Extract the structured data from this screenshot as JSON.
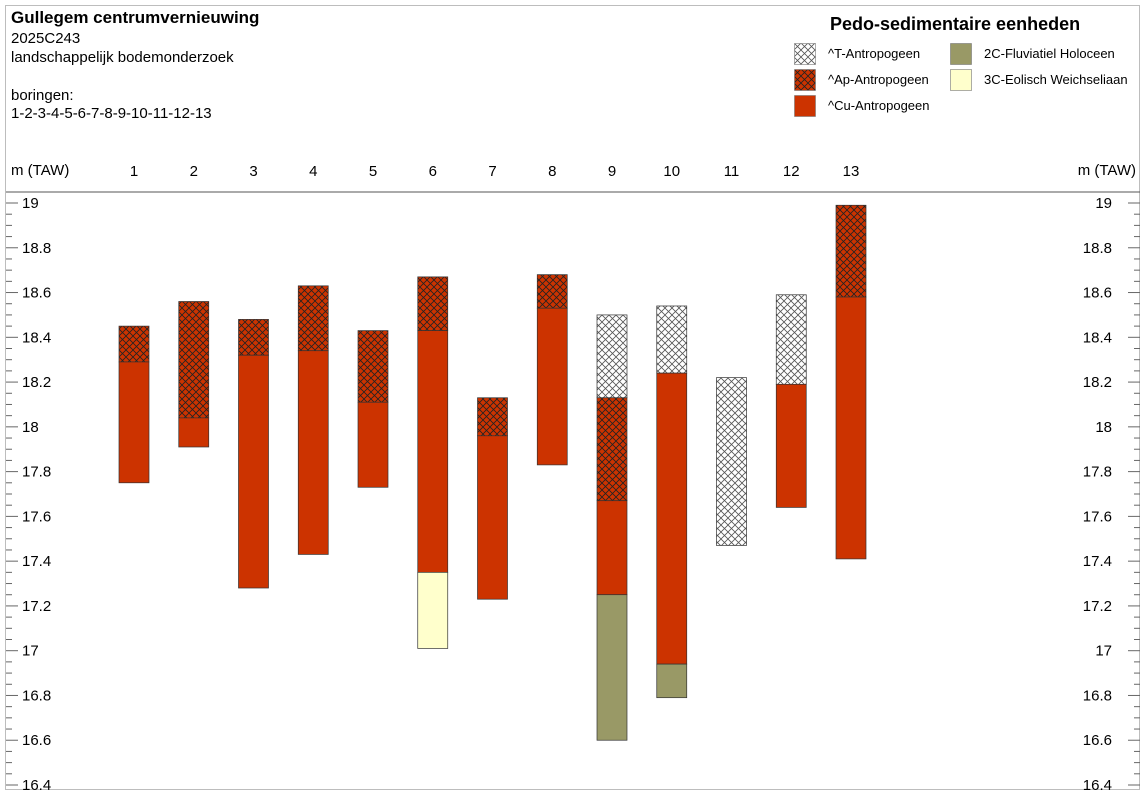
{
  "header": {
    "title": "Gullegem centrumvernieuwing",
    "code": "2025C243",
    "study": "landschappelijk bodemonderzoek",
    "boringen_label": "boringen:",
    "boringen_list": "1-2-3-4-5-6-7-8-9-10-11-12-13"
  },
  "legend": {
    "title": "Pedo-sedimentaire eenheden",
    "items": [
      {
        "key": "T",
        "label": "^T-Antropogeen",
        "fill": "#ffffff",
        "hatch": true,
        "hatch_color": "#555555"
      },
      {
        "key": "Ap",
        "label": "^Ap-Antropogeen",
        "fill": "#cc3300",
        "hatch": true,
        "hatch_color": "#222222"
      },
      {
        "key": "Cu",
        "label": "^Cu-Antropogeen",
        "fill": "#cc3300",
        "hatch": false
      },
      {
        "key": "2C",
        "label": "2C-Fluviatiel Holoceen",
        "fill": "#999966",
        "hatch": false
      },
      {
        "key": "3C",
        "label": "3C-Eolisch Weichseliaan",
        "fill": "#ffffcc",
        "hatch": false
      }
    ]
  },
  "chart_data": {
    "type": "bar",
    "ylabel": "m (TAW)",
    "ylim": [
      16.4,
      19.0
    ],
    "yticks": [
      "19",
      "18.8",
      "18.6",
      "18.4",
      "18.2",
      "18",
      "17.8",
      "17.6",
      "17.4",
      "17.2",
      "17",
      "16.8",
      "16.6",
      "16.4"
    ],
    "categories": [
      "1",
      "2",
      "3",
      "4",
      "5",
      "6",
      "7",
      "8",
      "9",
      "10",
      "11",
      "12",
      "13"
    ],
    "borings": [
      {
        "name": "1",
        "layers": [
          {
            "unit": "Ap",
            "top": 18.45,
            "bottom": 18.29
          },
          {
            "unit": "Cu",
            "top": 18.29,
            "bottom": 17.75
          }
        ]
      },
      {
        "name": "2",
        "layers": [
          {
            "unit": "Ap",
            "top": 18.56,
            "bottom": 18.04
          },
          {
            "unit": "Cu",
            "top": 18.04,
            "bottom": 17.91
          }
        ]
      },
      {
        "name": "3",
        "layers": [
          {
            "unit": "Ap",
            "top": 18.48,
            "bottom": 18.32
          },
          {
            "unit": "Cu",
            "top": 18.32,
            "bottom": 17.28
          }
        ]
      },
      {
        "name": "4",
        "layers": [
          {
            "unit": "Ap",
            "top": 18.63,
            "bottom": 18.34
          },
          {
            "unit": "Cu",
            "top": 18.34,
            "bottom": 17.43
          }
        ]
      },
      {
        "name": "5",
        "layers": [
          {
            "unit": "Ap",
            "top": 18.43,
            "bottom": 18.11
          },
          {
            "unit": "Cu",
            "top": 18.11,
            "bottom": 17.73
          }
        ]
      },
      {
        "name": "6",
        "layers": [
          {
            "unit": "Ap",
            "top": 18.67,
            "bottom": 18.43
          },
          {
            "unit": "Cu",
            "top": 18.43,
            "bottom": 17.35
          },
          {
            "unit": "3C",
            "top": 17.35,
            "bottom": 17.01
          }
        ]
      },
      {
        "name": "7",
        "layers": [
          {
            "unit": "Ap",
            "top": 18.13,
            "bottom": 17.96
          },
          {
            "unit": "Cu",
            "top": 17.96,
            "bottom": 17.23
          }
        ]
      },
      {
        "name": "8",
        "layers": [
          {
            "unit": "Ap",
            "top": 18.68,
            "bottom": 18.53
          },
          {
            "unit": "Cu",
            "top": 18.53,
            "bottom": 17.83
          }
        ]
      },
      {
        "name": "9",
        "layers": [
          {
            "unit": "T",
            "top": 18.5,
            "bottom": 18.13
          },
          {
            "unit": "Ap",
            "top": 18.13,
            "bottom": 17.67
          },
          {
            "unit": "Cu",
            "top": 17.67,
            "bottom": 17.25
          },
          {
            "unit": "2C",
            "top": 17.25,
            "bottom": 16.6
          }
        ]
      },
      {
        "name": "10",
        "layers": [
          {
            "unit": "T",
            "top": 18.54,
            "bottom": 18.24
          },
          {
            "unit": "Cu",
            "top": 18.24,
            "bottom": 16.94
          },
          {
            "unit": "2C",
            "top": 16.94,
            "bottom": 16.79
          }
        ]
      },
      {
        "name": "11",
        "layers": [
          {
            "unit": "T",
            "top": 18.22,
            "bottom": 17.47
          }
        ]
      },
      {
        "name": "12",
        "layers": [
          {
            "unit": "T",
            "top": 18.59,
            "bottom": 18.19
          },
          {
            "unit": "Cu",
            "top": 18.19,
            "bottom": 17.64
          }
        ]
      },
      {
        "name": "13",
        "layers": [
          {
            "unit": "Ap",
            "top": 18.99,
            "bottom": 18.58
          },
          {
            "unit": "Cu",
            "top": 18.58,
            "bottom": 17.41
          }
        ]
      }
    ]
  }
}
